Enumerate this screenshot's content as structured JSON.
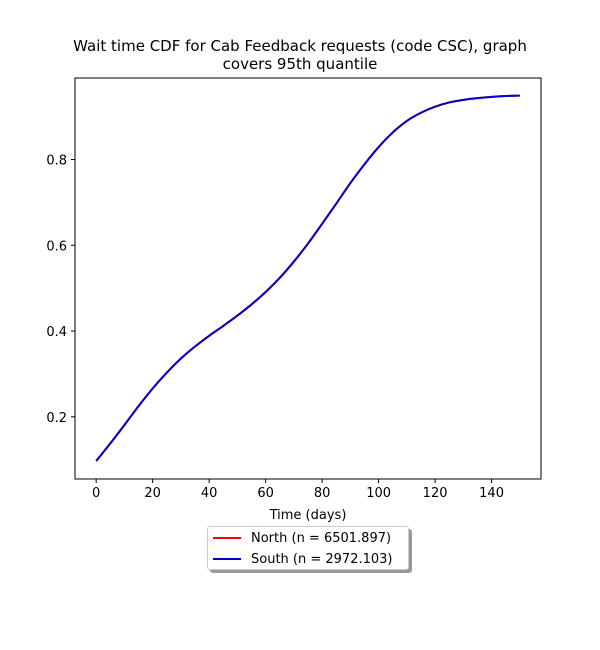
{
  "chart_data": {
    "type": "line",
    "title": "Wait time CDF for Cab Feedback  requests (code CSC), graph covers 95th quantile",
    "title_lines": [
      "Wait time CDF for Cab Feedback  requests (code CSC), graph",
      "covers 95th quantile"
    ],
    "xlabel": "Time (days)",
    "ylabel": "",
    "xlim": [
      -7.5,
      157.5
    ],
    "ylim": [
      0.055,
      0.99
    ],
    "xticks": [
      0,
      20,
      40,
      60,
      80,
      100,
      120,
      140
    ],
    "yticks": [
      0.2,
      0.4,
      0.6,
      0.8
    ],
    "xtick_labels": [
      "0",
      "20",
      "40",
      "60",
      "80",
      "100",
      "120",
      "140"
    ],
    "ytick_labels": [
      "0.2",
      "0.4",
      "0.6",
      "0.8"
    ],
    "grid": false,
    "legend_position": "below",
    "series": [
      {
        "name": "North (n = 6501.897)",
        "color": "#ff0000",
        "x": [
          0,
          5,
          10,
          15,
          20,
          25,
          30,
          35,
          40,
          45,
          50,
          55,
          60,
          65,
          70,
          75,
          80,
          85,
          90,
          95,
          100,
          105,
          110,
          115,
          120,
          125,
          130,
          135,
          140,
          145,
          150
        ],
        "y": [
          0.097,
          0.138,
          0.181,
          0.225,
          0.266,
          0.303,
          0.336,
          0.364,
          0.389,
          0.412,
          0.436,
          0.462,
          0.491,
          0.524,
          0.562,
          0.604,
          0.65,
          0.697,
          0.745,
          0.789,
          0.829,
          0.863,
          0.89,
          0.909,
          0.923,
          0.933,
          0.939,
          0.943,
          0.946,
          0.948,
          0.949
        ]
      },
      {
        "name": "South (n = 2972.103)",
        "color": "#0000cc",
        "x": [
          0,
          5,
          10,
          15,
          20,
          25,
          30,
          35,
          40,
          45,
          50,
          55,
          60,
          65,
          70,
          75,
          80,
          85,
          90,
          95,
          100,
          105,
          110,
          115,
          120,
          125,
          130,
          135,
          140,
          145,
          150
        ],
        "y": [
          0.097,
          0.138,
          0.181,
          0.225,
          0.266,
          0.303,
          0.336,
          0.364,
          0.389,
          0.412,
          0.436,
          0.462,
          0.491,
          0.524,
          0.562,
          0.604,
          0.65,
          0.697,
          0.745,
          0.789,
          0.829,
          0.863,
          0.89,
          0.909,
          0.923,
          0.933,
          0.939,
          0.943,
          0.946,
          0.948,
          0.949
        ]
      }
    ]
  }
}
